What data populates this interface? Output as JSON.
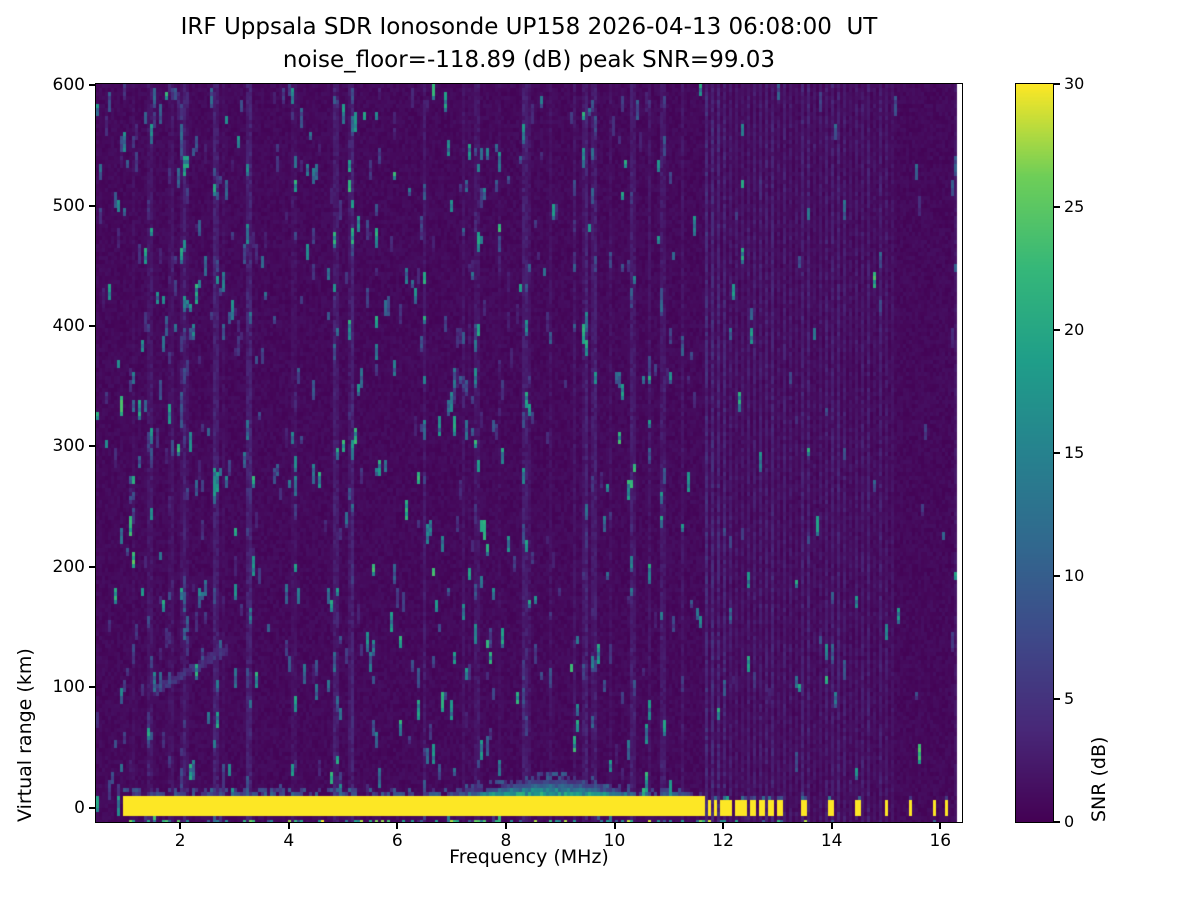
{
  "page": {
    "background": "#ffffff",
    "text_color": "#000000"
  },
  "chart_data": {
    "type": "heatmap",
    "title": "IRF Uppsala SDR Ionosonde UP158 2026-04-13 06:08:00  UT",
    "subtitle": "noise_floor=-118.89 (dB) peak SNR=99.03",
    "xlabel": "Frequency (MHz)",
    "ylabel": "Virtual range (km)",
    "xlim": [
      0.45,
      16.4
    ],
    "ylim": [
      -12,
      601
    ],
    "xticks": [
      2,
      4,
      6,
      8,
      10,
      12,
      14,
      16
    ],
    "yticks": [
      0,
      100,
      200,
      300,
      400,
      500,
      600
    ],
    "grid": false,
    "legend": "none",
    "colorbar": {
      "label": "SNR (dB)",
      "ticks": [
        0,
        5,
        10,
        15,
        20,
        25,
        30
      ],
      "vmin": 0,
      "vmax": 30,
      "position": "right"
    },
    "colormap": "viridis",
    "colormap_stops": [
      [
        0.0,
        "#440154"
      ],
      [
        0.125,
        "#482878"
      ],
      [
        0.25,
        "#3e4989"
      ],
      [
        0.375,
        "#31688e"
      ],
      [
        0.5,
        "#26828e"
      ],
      [
        0.625,
        "#1f9e89"
      ],
      [
        0.75,
        "#35b779"
      ],
      [
        0.875,
        "#6ece58"
      ],
      [
        1.0,
        "#fde725"
      ]
    ],
    "features": {
      "description": "Ionogram: dark viridis background noise ~0-2 dB with scattered teal speckle streaks; saturated yellow ground-return band at 0 km virtual range from ~0.95 to ~11.65 MHz with teal fringe bump near 8.8 MHz; above 11.65 MHz only discrete narrow transmit pulses reach 0 km; regular faint vertical interference stripes from 11.6 MHz to the right edge; thin white unswept strip before right spine.",
      "background_db_range": [
        0,
        1.5
      ],
      "noise_streak_db_range": [
        3,
        23
      ],
      "ground_band": {
        "freq_start_mhz": 0.95,
        "freq_end_mhz": 11.65,
        "range_km": [
          -7,
          9
        ],
        "snr_db": 35,
        "fringe_bump_center_mhz": 8.8,
        "fringe_bump_height_km": 14
      },
      "pulse_columns_mhz": [
        11.75,
        11.87,
        11.99,
        12.12,
        12.26,
        12.4,
        12.55,
        12.71,
        12.88,
        13.05,
        13.5,
        14.0,
        14.5,
        15.0,
        15.45,
        15.9,
        16.12
      ],
      "pulse_range_km": [
        -7,
        6
      ],
      "enhanced_columns_mhz": [
        1.45,
        2.05,
        2.65,
        3.25,
        4.85,
        5.15,
        6.5,
        7.45,
        8.35,
        9.45,
        9.62,
        10.35,
        10.9
      ],
      "faint_stripe_region_mhz": [
        11.6,
        16.32
      ],
      "faint_stripe_spacing_mhz": 0.11,
      "diagonal_trace": {
        "freq_mhz": [
          1.5,
          2.9
        ],
        "range_km": [
          96,
          132
        ]
      },
      "data_freq_end_mhz": 16.32,
      "seed": 42
    }
  }
}
